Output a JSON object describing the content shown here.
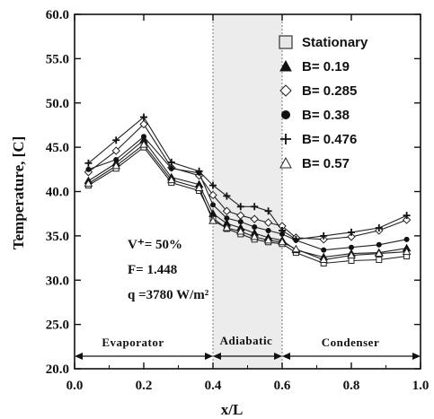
{
  "chart_data": {
    "type": "line",
    "xlabel": "x/L",
    "ylabel": "Temperature, [C]",
    "xlim": [
      0.0,
      1.0
    ],
    "ylim": [
      20.0,
      60.0
    ],
    "x_ticks": [
      "0.0",
      "0.2",
      "0.4",
      "0.6",
      "0.8",
      "1.0"
    ],
    "y_ticks": [
      "20.0",
      "25.0",
      "30.0",
      "35.0",
      "40.0",
      "45.0",
      "50.0",
      "55.0",
      "60.0"
    ],
    "legend_position": "top-right",
    "grid": false,
    "x": [
      0.04,
      0.12,
      0.2,
      0.28,
      0.36,
      0.4,
      0.44,
      0.48,
      0.52,
      0.56,
      0.6,
      0.64,
      0.72,
      0.8,
      0.88,
      0.96
    ],
    "series": [
      {
        "name": "Stationary",
        "marker": "square",
        "values": [
          40.7,
          42.6,
          45.0,
          41.0,
          40.1,
          37.0,
          35.8,
          35.2,
          34.6,
          34.3,
          34.1,
          33.1,
          31.9,
          32.2,
          32.3,
          32.7
        ]
      },
      {
        "name": "B= 0.19",
        "marker": "triangle-filled",
        "values": [
          41.2,
          43.2,
          45.8,
          41.6,
          40.8,
          37.5,
          36.4,
          35.9,
          35.3,
          34.8,
          34.5,
          33.4,
          32.6,
          33.0,
          33.1,
          33.6
        ]
      },
      {
        "name": "B= 0.285",
        "marker": "diamond",
        "values": [
          42.2,
          44.6,
          47.6,
          42.7,
          41.8,
          39.6,
          37.8,
          37.3,
          36.9,
          36.5,
          36.1,
          34.8,
          34.6,
          34.9,
          35.6,
          36.8
        ]
      },
      {
        "name": "B= 0.38",
        "marker": "circle-filled",
        "values": [
          42.5,
          43.6,
          46.2,
          42.6,
          42.1,
          38.5,
          37.0,
          36.6,
          36.0,
          35.6,
          35.2,
          34.5,
          33.4,
          33.7,
          34.0,
          34.6
        ]
      },
      {
        "name": "B= 0.476",
        "marker": "plus",
        "values": [
          43.2,
          45.8,
          48.4,
          43.3,
          42.3,
          40.7,
          39.5,
          38.3,
          38.3,
          37.8,
          35.6,
          34.6,
          35.0,
          35.4,
          35.9,
          37.3
        ]
      },
      {
        "name": "B= 0.57",
        "marker": "triangle-open",
        "values": [
          40.9,
          42.9,
          45.3,
          41.3,
          40.4,
          36.7,
          35.9,
          35.5,
          34.9,
          34.5,
          34.3,
          33.5,
          32.3,
          32.8,
          33.0,
          33.2
        ]
      }
    ],
    "annotations": {
      "vplus": "V⁺= 50%",
      "f": "F= 1.448",
      "q": "q =3780 W/m²"
    },
    "regions": {
      "evaporator": {
        "label": "Evaporator",
        "range": [
          0.0,
          0.4
        ]
      },
      "adiabatic": {
        "label": "Adiabatic",
        "range": [
          0.4,
          0.6
        ]
      },
      "condenser": {
        "label": "Condenser",
        "range": [
          0.6,
          1.0
        ]
      }
    }
  }
}
